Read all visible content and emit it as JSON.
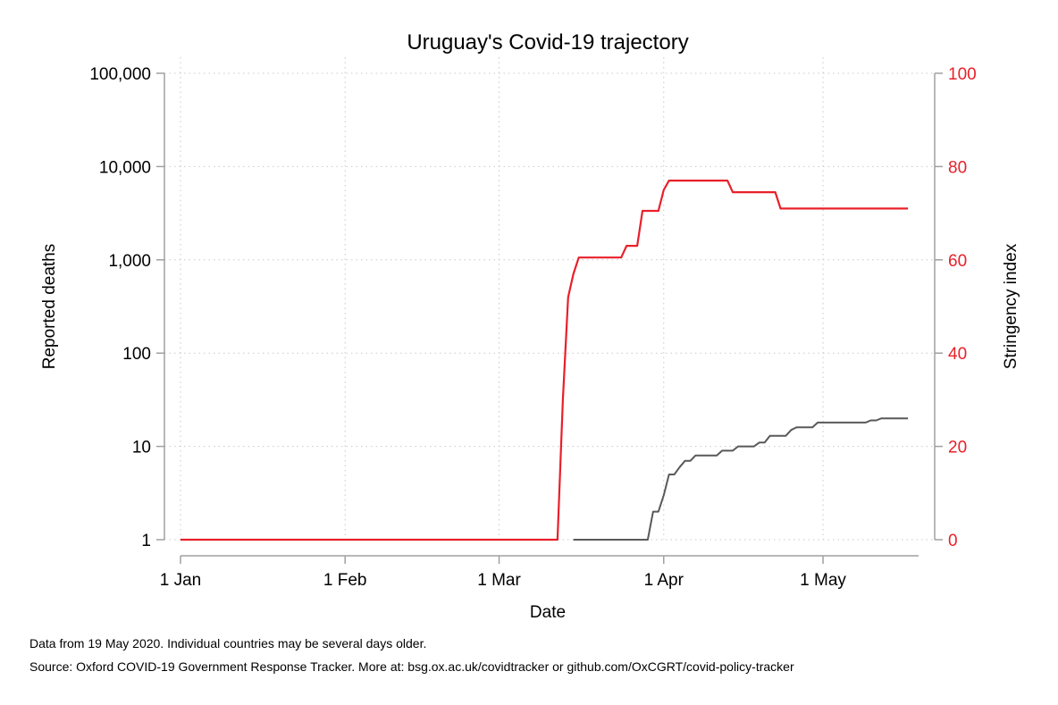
{
  "chart_data": {
    "type": "line",
    "title": "Uruguay's Covid-19 trajectory",
    "xlabel": "Date",
    "ylabel_left": "Reported deaths",
    "ylabel_right": "Stringency index",
    "x_axis": {
      "start": "2020-01-01",
      "end": "2020-05-19",
      "ticks": [
        {
          "date": "2020-01-01",
          "label": "1 Jan"
        },
        {
          "date": "2020-02-01",
          "label": "1 Feb"
        },
        {
          "date": "2020-03-01",
          "label": "1 Mar"
        },
        {
          "date": "2020-04-01",
          "label": "1 Apr"
        },
        {
          "date": "2020-05-01",
          "label": "1 May"
        }
      ]
    },
    "y_left": {
      "scale": "log",
      "range": [
        1,
        100000
      ],
      "ticks": [
        {
          "value": 1,
          "label": "1"
        },
        {
          "value": 10,
          "label": "10"
        },
        {
          "value": 100,
          "label": "100"
        },
        {
          "value": 1000,
          "label": "1,000"
        },
        {
          "value": 10000,
          "label": "10,000"
        },
        {
          "value": 100000,
          "label": "100,000"
        }
      ]
    },
    "y_right": {
      "scale": "linear",
      "range": [
        0,
        100
      ],
      "ticks": [
        {
          "value": 0,
          "label": "0"
        },
        {
          "value": 20,
          "label": "20"
        },
        {
          "value": 40,
          "label": "40"
        },
        {
          "value": 60,
          "label": "60"
        },
        {
          "value": 80,
          "label": "80"
        },
        {
          "value": 100,
          "label": "100"
        }
      ]
    },
    "grid": true,
    "series": [
      {
        "axis": "right",
        "color": "#e8202a",
        "points": [
          [
            "2020-01-01",
            0
          ],
          [
            "2020-03-12",
            0
          ],
          [
            "2020-03-13",
            30
          ],
          [
            "2020-03-14",
            52
          ],
          [
            "2020-03-15",
            57
          ],
          [
            "2020-03-16",
            60.5
          ],
          [
            "2020-03-24",
            60.5
          ],
          [
            "2020-03-25",
            63
          ],
          [
            "2020-03-27",
            63
          ],
          [
            "2020-03-28",
            70.5
          ],
          [
            "2020-03-31",
            70.5
          ],
          [
            "2020-04-01",
            75
          ],
          [
            "2020-04-02",
            77
          ],
          [
            "2020-04-13",
            77
          ],
          [
            "2020-04-14",
            74.5
          ],
          [
            "2020-04-22",
            74.5
          ],
          [
            "2020-04-23",
            71
          ],
          [
            "2020-05-17",
            71
          ]
        ]
      },
      {
        "axis": "left",
        "color": "#595959",
        "points": [
          [
            "2020-03-15",
            1
          ],
          [
            "2020-03-29",
            1
          ],
          [
            "2020-03-30",
            2
          ],
          [
            "2020-03-31",
            2
          ],
          [
            "2020-04-01",
            3
          ],
          [
            "2020-04-02",
            5
          ],
          [
            "2020-04-03",
            5
          ],
          [
            "2020-04-04",
            6
          ],
          [
            "2020-04-05",
            7
          ],
          [
            "2020-04-06",
            7
          ],
          [
            "2020-04-07",
            8
          ],
          [
            "2020-04-11",
            8
          ],
          [
            "2020-04-12",
            9
          ],
          [
            "2020-04-14",
            9
          ],
          [
            "2020-04-15",
            10
          ],
          [
            "2020-04-18",
            10
          ],
          [
            "2020-04-19",
            11
          ],
          [
            "2020-04-20",
            11
          ],
          [
            "2020-04-21",
            13
          ],
          [
            "2020-04-24",
            13
          ],
          [
            "2020-04-25",
            15
          ],
          [
            "2020-04-26",
            16
          ],
          [
            "2020-04-29",
            16
          ],
          [
            "2020-04-30",
            18
          ],
          [
            "2020-05-09",
            18
          ],
          [
            "2020-05-10",
            19
          ],
          [
            "2020-05-11",
            19
          ],
          [
            "2020-05-12",
            20
          ],
          [
            "2020-05-17",
            20
          ]
        ]
      }
    ]
  },
  "notes": {
    "line1": "Data from 19 May 2020. Individual countries may be several days older.",
    "line2": "Source: Oxford COVID-19 Government Response Tracker. More at: bsg.ox.ac.uk/covidtracker or github.com/OxCGRT/covid-policy-tracker"
  },
  "colors": {
    "stringency": "#e8202a",
    "deaths": "#595959",
    "axis": "#a0a0a0",
    "grid": "#c8c8c8"
  }
}
